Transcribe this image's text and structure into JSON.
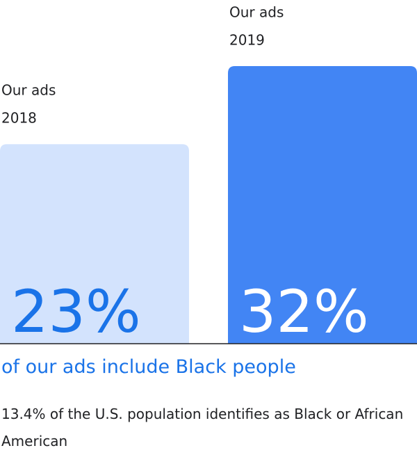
{
  "chart_data": {
    "type": "bar",
    "bar_headers": [
      "Our ads",
      "Our ads"
    ],
    "categories": [
      "2018",
      "2019"
    ],
    "values": [
      23,
      32
    ],
    "value_labels": [
      "23%",
      "32%"
    ],
    "colors": [
      "#d3e3fd",
      "#4285f4"
    ],
    "label_colors": [
      "#1a73e8",
      "#ffffff"
    ],
    "subtitle": "of our ads include Black people",
    "note": "13.4% of the U.S. population identifies as Black or African American"
  }
}
